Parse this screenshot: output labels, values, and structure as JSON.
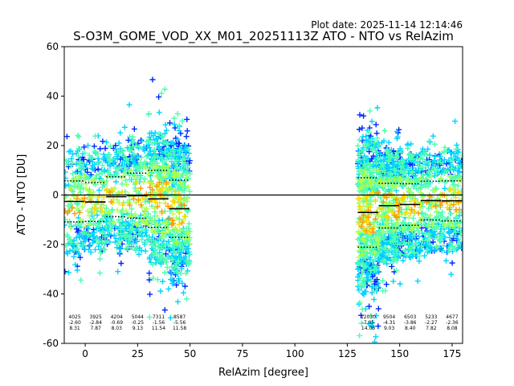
{
  "plot_date": "Plot date: 2025-11-14 12:14:46",
  "chart_data": {
    "type": "scatter",
    "title": "S-O3M_GOME_VOD_XX_M01_20251113Z ATO - NTO vs RelAzim",
    "xlabel": "RelAzim [degree]",
    "ylabel": "ATO - NTO [DU]",
    "xlim": [
      -10,
      180
    ],
    "ylim": [
      -60,
      60
    ],
    "xticks": [
      0,
      25,
      50,
      75,
      100,
      125,
      150,
      175
    ],
    "yticks": [
      -60,
      -40,
      -20,
      0,
      20,
      40,
      60
    ],
    "grid": false,
    "zero_line": 0,
    "density_colors": [
      "#0028ff",
      "#00d4ff",
      "#4dffad",
      "#adff4d",
      "#ffd700",
      "#ff9a00"
    ],
    "bins": [
      {
        "x_start": -10,
        "x_end": 0,
        "count": "4025",
        "mean": "-2.60",
        "std": "8.31",
        "mean_value": -2.6,
        "std_value": 8.31
      },
      {
        "x_start": 0,
        "x_end": 10,
        "count": "3925",
        "mean": "-2.84",
        "std": "7.87",
        "mean_value": -2.84,
        "std_value": 7.87
      },
      {
        "x_start": 10,
        "x_end": 20,
        "count": "4204",
        "mean": "-0.69",
        "std": "8.03",
        "mean_value": -0.69,
        "std_value": 8.03
      },
      {
        "x_start": 20,
        "x_end": 30,
        "count": "5044",
        "mean": "-0.25",
        "std": "9.13",
        "mean_value": -0.25,
        "std_value": 9.13
      },
      {
        "x_start": 30,
        "x_end": 40,
        "count": "7311",
        "mean": "-1.56",
        "std": "11.54",
        "mean_value": -1.56,
        "std_value": 11.54
      },
      {
        "x_start": 40,
        "x_end": 50,
        "count": "8587",
        "mean": "-5.56",
        "std": "11.58",
        "mean_value": -5.56,
        "std_value": 11.58
      },
      {
        "x_start": 130,
        "x_end": 140,
        "count": "12030",
        "mean": "-7.05",
        "std": "14.06",
        "mean_value": -7.05,
        "std_value": 14.06
      },
      {
        "x_start": 140,
        "x_end": 150,
        "count": "9504",
        "mean": "-4.31",
        "std": "9.03",
        "mean_value": -4.31,
        "std_value": 9.03
      },
      {
        "x_start": 150,
        "x_end": 160,
        "count": "6503",
        "mean": "-3.86",
        "std": "8.40",
        "mean_value": -3.86,
        "std_value": 8.4
      },
      {
        "x_start": 160,
        "x_end": 170,
        "count": "5233",
        "mean": "-2.27",
        "std": "7.82",
        "mean_value": -2.27,
        "std_value": 7.82
      },
      {
        "x_start": 170,
        "x_end": 180,
        "count": "4677",
        "mean": "-2.36",
        "std": "8.08",
        "mean_value": -2.36,
        "std_value": 8.08
      }
    ]
  }
}
